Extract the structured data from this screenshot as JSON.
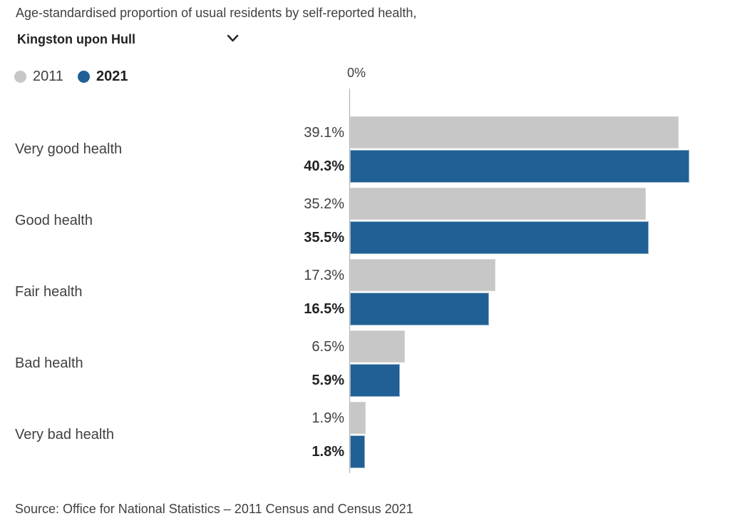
{
  "header": {
    "title": "Age-standardised proportion of usual residents by self-reported health,",
    "area_selector": {
      "value": "Kingston upon Hull"
    }
  },
  "legend": {
    "items": [
      {
        "label": "2011",
        "color": "#c7c7c7",
        "emphasis": false
      },
      {
        "label": "2021",
        "color": "#206095",
        "emphasis": true
      }
    ]
  },
  "axis": {
    "zero_tick_label": "0%"
  },
  "chart_data": {
    "type": "bar",
    "orientation": "horizontal",
    "title": "Age-standardised proportion of usual residents by self-reported health, Kingston upon Hull",
    "categories": [
      "Very good health",
      "Good health",
      "Fair health",
      "Bad health",
      "Very bad health"
    ],
    "series": [
      {
        "name": "2011",
        "color": "#c7c7c7",
        "values": [
          39.1,
          35.2,
          17.3,
          6.5,
          1.9
        ],
        "labels": [
          "39.1%",
          "35.2%",
          "17.3%",
          "6.5%",
          "1.9%"
        ]
      },
      {
        "name": "2021",
        "color": "#206095",
        "values": [
          40.3,
          35.5,
          16.5,
          5.9,
          1.8
        ],
        "labels": [
          "40.3%",
          "35.5%",
          "16.5%",
          "5.9%",
          "1.8%"
        ]
      }
    ],
    "xlim": [
      0,
      45
    ],
    "axis_tick_labels": [
      "0%"
    ],
    "legend_position": "top-left",
    "grid": false,
    "value_labels_shown": true
  },
  "source": "Source: Office for National Statistics – 2011 Census and Census 2021"
}
